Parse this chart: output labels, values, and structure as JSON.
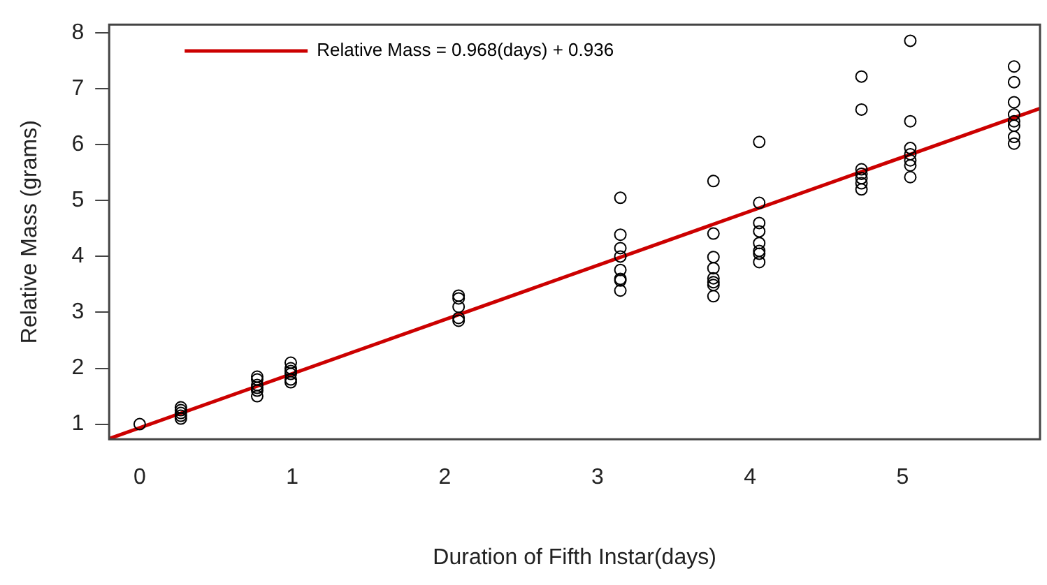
{
  "chart_data": {
    "type": "scatter",
    "xlabel": "Duration of Fifth Instar(days)",
    "ylabel": "Relative Mass (grams)",
    "xlim": [
      -0.2,
      5.9
    ],
    "ylim": [
      0.73,
      8.15
    ],
    "xticks": [
      0,
      1,
      2,
      3,
      4,
      5
    ],
    "yticks": [
      1,
      2,
      3,
      4,
      5,
      6,
      7,
      8
    ],
    "grid": false,
    "legend": "top left",
    "series": [
      {
        "type": "scatter",
        "marker": "circle",
        "color": "#000000",
        "x": [
          0,
          0.27,
          0.27,
          0.27,
          0.27,
          0.27,
          0.77,
          0.77,
          0.77,
          0.77,
          0.77,
          0.77,
          0.99,
          0.99,
          0.99,
          0.99,
          0.99,
          0.99,
          2.09,
          2.09,
          2.09,
          2.09,
          2.09,
          3.15,
          3.15,
          3.15,
          3.15,
          3.15,
          3.15,
          3.15,
          3.15,
          3.76,
          3.76,
          3.76,
          3.76,
          3.76,
          3.76,
          3.76,
          3.76,
          4.06,
          4.06,
          4.06,
          4.06,
          4.06,
          4.06,
          4.06,
          4.06,
          4.73,
          4.73,
          4.73,
          4.73,
          4.73,
          4.73,
          4.73,
          5.05,
          5.05,
          5.05,
          5.05,
          5.05,
          5.05,
          5.05,
          5.73,
          5.73,
          5.73,
          5.73,
          5.73,
          5.73,
          5.73,
          5.73
        ],
        "values": [
          1.0,
          1.1,
          1.15,
          1.2,
          1.25,
          1.3,
          1.5,
          1.6,
          1.65,
          1.7,
          1.8,
          1.85,
          1.75,
          1.8,
          1.9,
          1.95,
          2.0,
          2.1,
          2.85,
          2.9,
          3.1,
          3.25,
          3.3,
          5.05,
          4.39,
          4.15,
          4.0,
          3.76,
          3.6,
          3.57,
          3.39,
          5.35,
          4.41,
          3.99,
          3.79,
          3.61,
          3.54,
          3.49,
          3.29,
          6.05,
          4.96,
          4.6,
          4.45,
          4.24,
          4.1,
          4.05,
          3.9,
          7.22,
          6.63,
          5.56,
          5.48,
          5.4,
          5.31,
          5.2,
          7.86,
          6.42,
          5.94,
          5.83,
          5.72,
          5.63,
          5.42,
          7.4,
          7.12,
          6.76,
          6.54,
          6.42,
          6.34,
          6.14,
          6.02
        ]
      },
      {
        "type": "line",
        "name": "Relative Mass = 0.968(days) + 0.936",
        "marker": "none",
        "color": "#cc0000",
        "x": [
          -0.2,
          5.9
        ],
        "values": [
          0.74,
          6.65
        ]
      }
    ]
  }
}
